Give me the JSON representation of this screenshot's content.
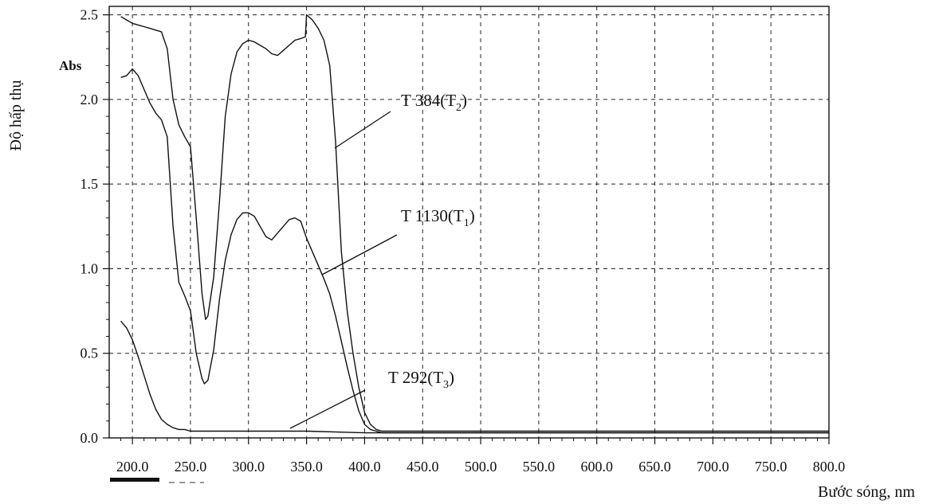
{
  "chart_data": {
    "type": "line",
    "xlabel": "Bước sóng, nm",
    "ylabel": "Độ hấp thụ",
    "unit_label": "Abs",
    "xlim": [
      180,
      800
    ],
    "ylim": [
      0,
      2.55
    ],
    "xticks": [
      "200.0",
      "250.0",
      "300.0",
      "350.0",
      "400.0",
      "450.0",
      "500.0",
      "550.0",
      "600.0",
      "650.0",
      "700.0",
      "750.0",
      "800.0"
    ],
    "yticks": [
      "0.0",
      "0.5",
      "1.0",
      "1.5",
      "2.0",
      "2.5"
    ],
    "grid": true,
    "series": [
      {
        "name": "T 384(T",
        "sub": "2",
        "x": [
          190,
          195,
          200,
          205,
          210,
          215,
          220,
          225,
          230,
          235,
          240,
          245,
          250,
          255,
          260,
          263,
          265,
          270,
          275,
          280,
          285,
          290,
          295,
          300,
          305,
          310,
          315,
          320,
          325,
          330,
          335,
          340,
          345,
          349,
          350,
          355,
          360,
          365,
          370,
          375,
          380,
          385,
          390,
          395,
          400,
          405,
          410,
          415,
          420,
          450,
          500,
          600,
          700,
          800
        ],
        "y": [
          2.49,
          2.47,
          2.45,
          2.44,
          2.43,
          2.42,
          2.41,
          2.4,
          2.3,
          2.0,
          1.85,
          1.78,
          1.72,
          1.3,
          0.85,
          0.7,
          0.72,
          0.95,
          1.4,
          1.9,
          2.15,
          2.28,
          2.33,
          2.35,
          2.34,
          2.32,
          2.3,
          2.27,
          2.26,
          2.29,
          2.32,
          2.35,
          2.36,
          2.37,
          2.5,
          2.47,
          2.42,
          2.35,
          2.2,
          1.75,
          1.1,
          0.75,
          0.5,
          0.3,
          0.15,
          0.08,
          0.05,
          0.04,
          0.04,
          0.04,
          0.04,
          0.04,
          0.04,
          0.04
        ]
      },
      {
        "name": "T 1130(T",
        "sub": "1",
        "x": [
          190,
          195,
          200,
          205,
          210,
          215,
          220,
          225,
          230,
          235,
          240,
          245,
          250,
          255,
          260,
          262,
          265,
          270,
          275,
          280,
          285,
          290,
          295,
          300,
          305,
          310,
          315,
          320,
          325,
          330,
          335,
          340,
          345,
          350,
          355,
          360,
          365,
          370,
          375,
          380,
          385,
          390,
          395,
          400,
          405,
          410,
          415,
          420,
          450,
          500,
          600,
          700,
          800
        ],
        "y": [
          2.13,
          2.14,
          2.18,
          2.14,
          2.06,
          1.98,
          1.92,
          1.88,
          1.78,
          1.25,
          0.92,
          0.84,
          0.75,
          0.5,
          0.35,
          0.32,
          0.34,
          0.52,
          0.82,
          1.05,
          1.2,
          1.29,
          1.33,
          1.33,
          1.31,
          1.25,
          1.19,
          1.17,
          1.21,
          1.25,
          1.29,
          1.3,
          1.28,
          1.18,
          1.1,
          1.02,
          0.94,
          0.85,
          0.72,
          0.57,
          0.42,
          0.28,
          0.16,
          0.08,
          0.05,
          0.04,
          0.03,
          0.03,
          0.03,
          0.03,
          0.03,
          0.03,
          0.03
        ]
      },
      {
        "name": "T 292(T",
        "sub": "3",
        "x": [
          190,
          195,
          200,
          205,
          210,
          215,
          220,
          225,
          230,
          235,
          240,
          245,
          250,
          260,
          280,
          300,
          350,
          400,
          450,
          500,
          600,
          700,
          800
        ],
        "y": [
          0.69,
          0.65,
          0.58,
          0.48,
          0.37,
          0.26,
          0.17,
          0.11,
          0.08,
          0.06,
          0.05,
          0.05,
          0.04,
          0.04,
          0.04,
          0.04,
          0.04,
          0.03,
          0.03,
          0.03,
          0.03,
          0.03,
          0.03
        ]
      }
    ],
    "annotations": [
      {
        "series": 0,
        "text": "T 384(T",
        "sub": "2",
        "tail": "(T2)"
      },
      {
        "series": 1,
        "text": "T 1130(T",
        "sub": "1"
      },
      {
        "series": 2,
        "text": "T 292(T",
        "sub": "3"
      }
    ]
  }
}
